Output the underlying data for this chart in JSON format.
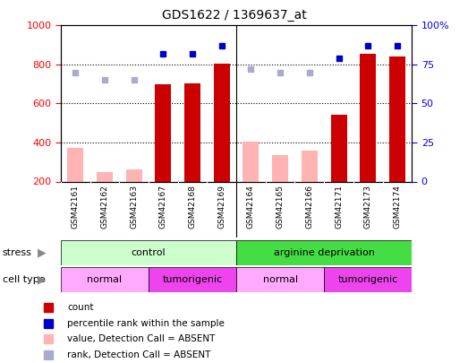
{
  "title": "GDS1622 / 1369637_at",
  "samples": [
    "GSM42161",
    "GSM42162",
    "GSM42163",
    "GSM42167",
    "GSM42168",
    "GSM42169",
    "GSM42164",
    "GSM42165",
    "GSM42166",
    "GSM42171",
    "GSM42173",
    "GSM42174"
  ],
  "count_present": [
    null,
    null,
    null,
    700,
    705,
    805,
    null,
    null,
    null,
    540,
    855,
    840
  ],
  "count_absent": [
    370,
    250,
    260,
    null,
    null,
    null,
    405,
    335,
    360,
    null,
    null,
    null
  ],
  "rank_present": [
    null,
    null,
    null,
    82,
    82,
    87,
    null,
    null,
    null,
    79,
    87,
    87
  ],
  "rank_absent": [
    70,
    65,
    65,
    null,
    null,
    null,
    72,
    70,
    70,
    null,
    null,
    null
  ],
  "ylim_left": [
    200,
    1000
  ],
  "ylim_right": [
    0,
    100
  ],
  "yticks_left": [
    200,
    400,
    600,
    800,
    1000
  ],
  "yticks_right": [
    0,
    25,
    50,
    75,
    100
  ],
  "ytick_labels_right": [
    "0",
    "25",
    "50",
    "75",
    "100%"
  ],
  "color_count_present": "#cc0000",
  "color_count_absent": "#ffb3b3",
  "color_rank_present": "#0000cc",
  "color_rank_absent": "#aaaacc",
  "stress_groups": [
    {
      "label": "control",
      "start": 0,
      "end": 6,
      "color": "#ccffcc"
    },
    {
      "label": "arginine deprivation",
      "start": 6,
      "end": 12,
      "color": "#44dd44"
    }
  ],
  "cell_groups": [
    {
      "label": "normal",
      "start": 0,
      "end": 3,
      "color": "#ffaaff"
    },
    {
      "label": "tumorigenic",
      "start": 3,
      "end": 6,
      "color": "#ee44ee"
    },
    {
      "label": "normal",
      "start": 6,
      "end": 9,
      "color": "#ffaaff"
    },
    {
      "label": "tumorigenic",
      "start": 9,
      "end": 12,
      "color": "#ee44ee"
    }
  ],
  "legend_items": [
    {
      "label": "count",
      "color": "#cc0000"
    },
    {
      "label": "percentile rank within the sample",
      "color": "#0000cc"
    },
    {
      "label": "value, Detection Call = ABSENT",
      "color": "#ffb3b3"
    },
    {
      "label": "rank, Detection Call = ABSENT",
      "color": "#aaaacc"
    }
  ],
  "background_color": "#ffffff",
  "bar_width": 0.55,
  "grid_dotted_at": [
    400,
    600,
    800
  ],
  "separator_at": 5.5,
  "figsize": [
    5.23,
    4.05
  ],
  "dpi": 100
}
